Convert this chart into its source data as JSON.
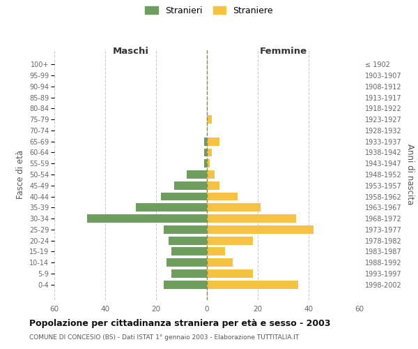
{
  "age_groups": [
    "0-4",
    "5-9",
    "10-14",
    "15-19",
    "20-24",
    "25-29",
    "30-34",
    "35-39",
    "40-44",
    "45-49",
    "50-54",
    "55-59",
    "60-64",
    "65-69",
    "70-74",
    "75-79",
    "80-84",
    "85-89",
    "90-94",
    "95-99",
    "100+"
  ],
  "birth_years": [
    "1998-2002",
    "1993-1997",
    "1988-1992",
    "1983-1987",
    "1978-1982",
    "1973-1977",
    "1968-1972",
    "1963-1967",
    "1958-1962",
    "1953-1957",
    "1948-1952",
    "1943-1947",
    "1938-1942",
    "1933-1937",
    "1928-1932",
    "1923-1927",
    "1918-1922",
    "1913-1917",
    "1908-1912",
    "1903-1907",
    "≤ 1902"
  ],
  "maschi": [
    17,
    14,
    16,
    14,
    15,
    17,
    47,
    28,
    18,
    13,
    8,
    1,
    1,
    1,
    0,
    0,
    0,
    0,
    0,
    0,
    0
  ],
  "femmine": [
    36,
    18,
    10,
    7,
    18,
    42,
    35,
    21,
    12,
    5,
    3,
    1,
    2,
    5,
    0,
    2,
    0,
    0,
    0,
    0,
    0
  ],
  "color_maschi": "#6d9e5e",
  "color_femmine": "#f5c242",
  "title": "Popolazione per cittadinanza straniera per età e sesso - 2003",
  "subtitle": "COMUNE DI CONCESIO (BS) - Dati ISTAT 1° gennaio 2003 - Elaborazione TUTTITALIA.IT",
  "xlabel_left": "Maschi",
  "xlabel_right": "Femmine",
  "ylabel_left": "Fasce di età",
  "ylabel_right": "Anni di nascita",
  "legend_stranieri": "Stranieri",
  "legend_straniere": "Straniere",
  "xlim": 60,
  "background_color": "#ffffff",
  "grid_color": "#cccccc"
}
